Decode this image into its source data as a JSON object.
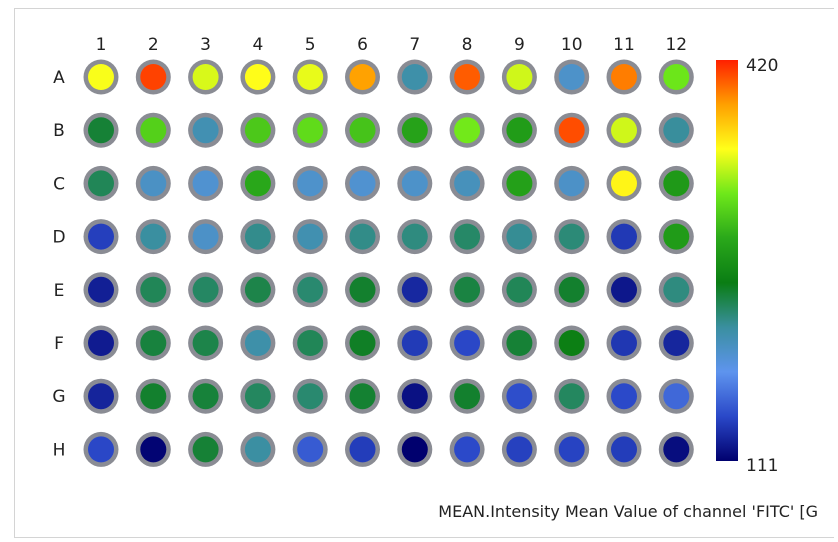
{
  "chart_data": {
    "type": "heatmap",
    "columns": [
      "1",
      "2",
      "3",
      "4",
      "5",
      "6",
      "7",
      "8",
      "9",
      "10",
      "11",
      "12"
    ],
    "rows": [
      "A",
      "B",
      "C",
      "D",
      "E",
      "F",
      "G",
      "H"
    ],
    "values": [
      [
        350,
        411,
        342,
        352,
        346,
        385,
        210,
        404,
        340,
        196,
        395,
        316
      ],
      [
        240,
        304,
        206,
        300,
        310,
        297,
        278,
        318,
        273,
        408,
        340,
        215
      ],
      [
        232,
        198,
        193,
        282,
        195,
        193,
        196,
        202,
        276,
        197,
        355,
        271
      ],
      [
        141,
        214,
        197,
        219,
        207,
        220,
        222,
        228,
        217,
        224,
        138,
        272
      ],
      [
        126,
        232,
        229,
        235,
        226,
        242,
        130,
        237,
        232,
        242,
        122,
        222
      ],
      [
        124,
        238,
        235,
        210,
        232,
        244,
        139,
        145,
        240,
        250,
        137,
        129
      ],
      [
        128,
        242,
        239,
        230,
        226,
        241,
        119,
        242,
        148,
        230,
        146,
        160
      ],
      [
        145,
        113,
        240,
        213,
        154,
        140,
        111,
        146,
        142,
        143,
        140,
        117
      ]
    ],
    "colorbar": {
      "min": 111,
      "max": 420,
      "min_label": "111",
      "max_label": "420"
    },
    "colorscale": [
      "#00006e",
      "#2a48c8",
      "#5e94ee",
      "#3a8fa0",
      "#0a7d14",
      "#2aa81a",
      "#6ee81a",
      "#ffff1a",
      "#ffa000",
      "#ff2000"
    ],
    "caption": "MEAN.Intensity Mean Value of channel 'FITC' [G"
  }
}
